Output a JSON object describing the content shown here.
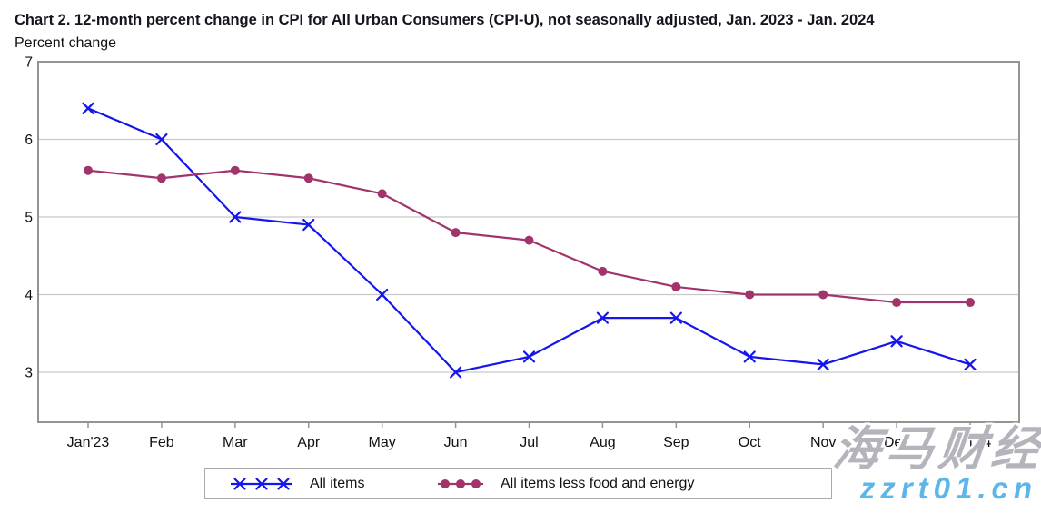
{
  "title": "Chart 2. 12-month percent change in CPI for All Urban Consumers (CPI-U), not seasonally adjusted, Jan. 2023 - Jan. 2024",
  "y_axis_caption": "Percent change",
  "chart_data": {
    "type": "line",
    "categories": [
      "Jan'23",
      "Feb",
      "Mar",
      "Apr",
      "May",
      "Jun",
      "Jul",
      "Aug",
      "Sep",
      "Oct",
      "Nov",
      "Dec",
      "Jan'24"
    ],
    "series": [
      {
        "name": "All items",
        "marker": "x",
        "color": "#1515ec",
        "values": [
          6.4,
          6.0,
          5.0,
          4.9,
          4.0,
          3.0,
          3.2,
          3.7,
          3.7,
          3.2,
          3.1,
          3.4,
          3.1
        ]
      },
      {
        "name": "All items less food and energy",
        "marker": "circle",
        "color": "#a1346b",
        "values": [
          5.6,
          5.5,
          5.6,
          5.5,
          5.3,
          4.8,
          4.7,
          4.3,
          4.1,
          4.0,
          4.0,
          3.9,
          3.9
        ]
      }
    ],
    "yticks": [
      7,
      6,
      5,
      4,
      3
    ],
    "ylim": [
      2.36,
      7
    ],
    "grid": true,
    "legend_position": "bottom",
    "axis_color": "#949494",
    "gridline_color": "#c8c8c8",
    "tick_label_color": "#111111"
  },
  "watermark": {
    "line1": "海马财经",
    "line1_color": "#b4b4bd",
    "line2": "zzrt01.cn",
    "line2_color": "#5db6e9"
  }
}
